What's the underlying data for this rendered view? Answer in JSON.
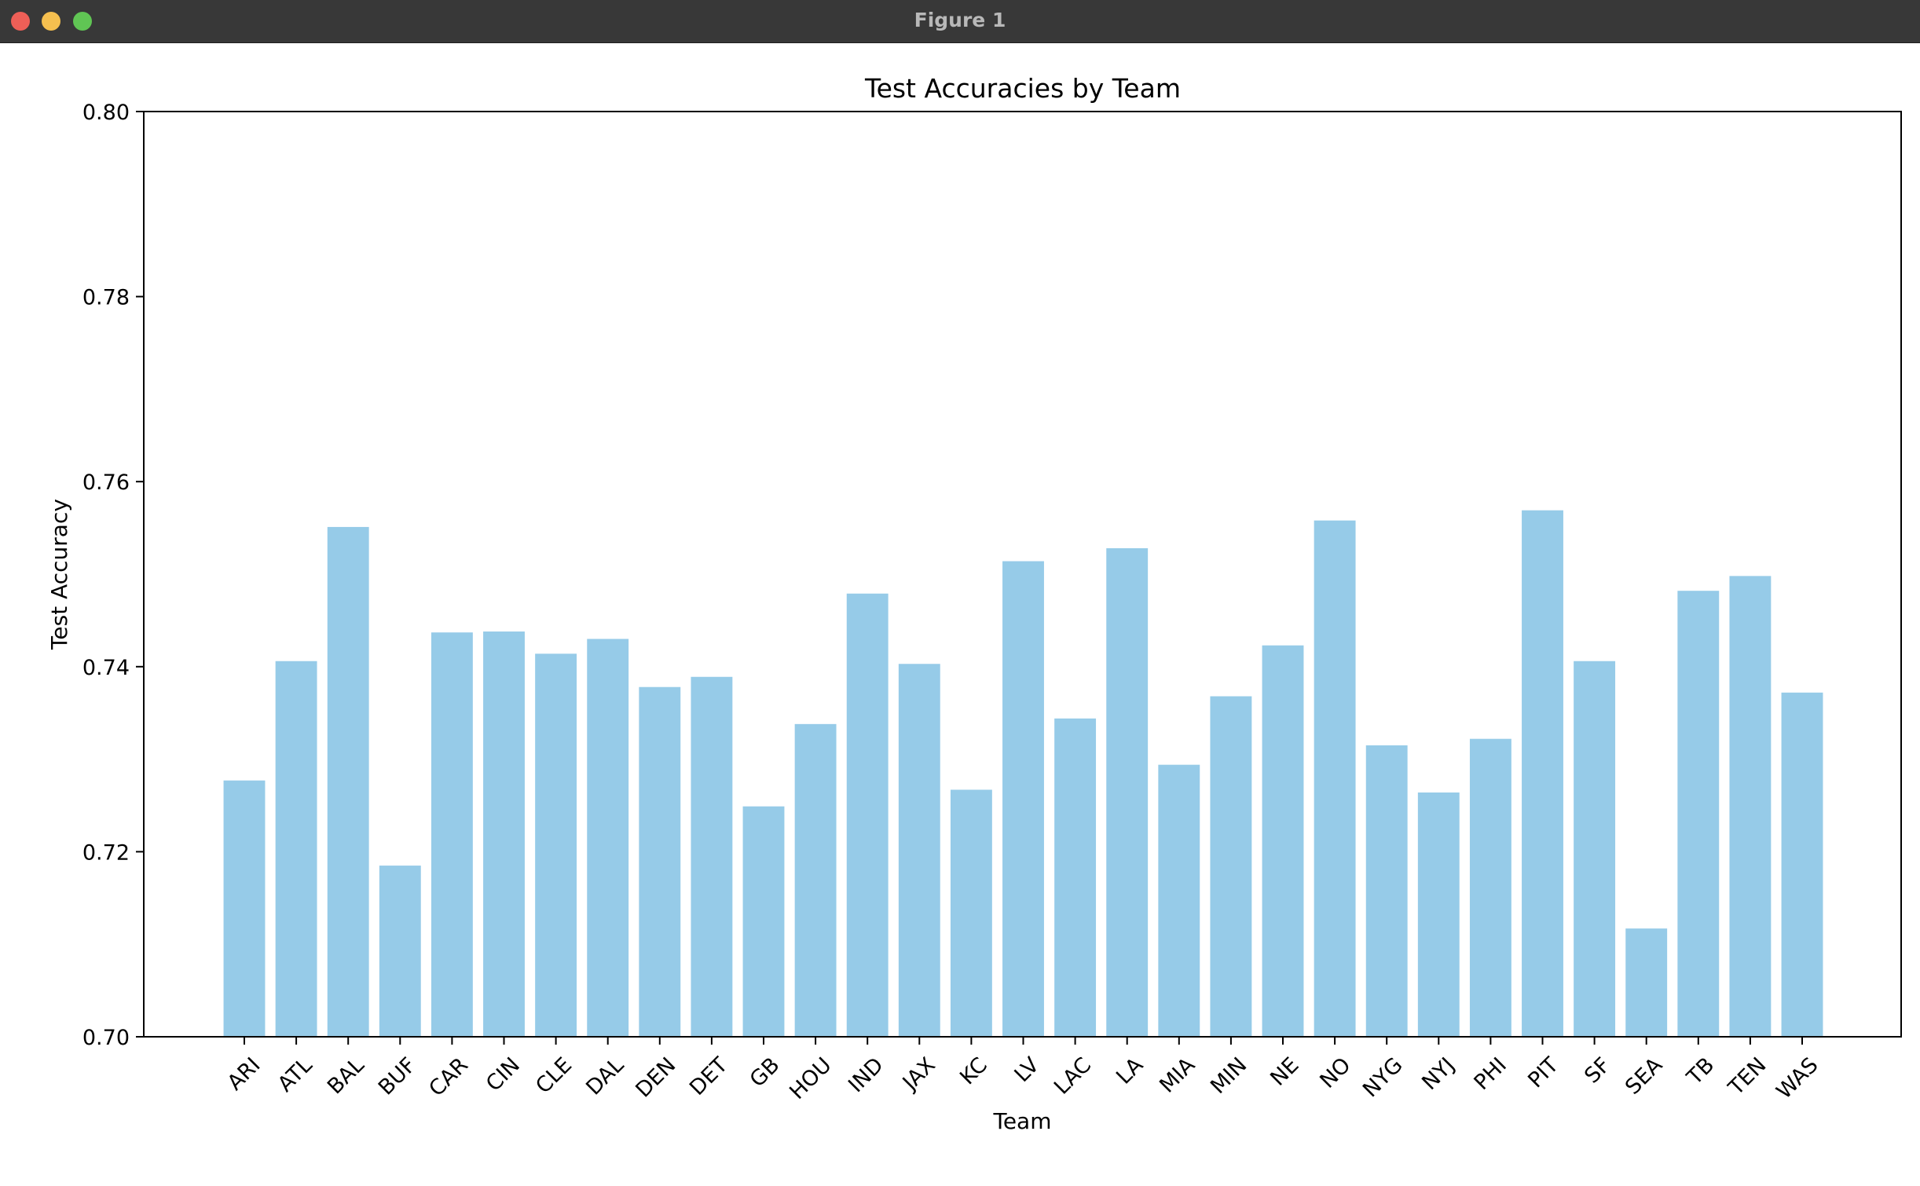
{
  "window": {
    "title": "Figure 1",
    "colors": {
      "close": "#ee5f57",
      "minimize": "#f5bf4f",
      "maximize": "#60c554"
    }
  },
  "chart_data": {
    "type": "bar",
    "title": "Test Accuracies by Team",
    "xlabel": "Team",
    "ylabel": "Test Accuracy",
    "ylim": [
      0.7,
      0.8
    ],
    "yticks": [
      "0.70",
      "0.72",
      "0.74",
      "0.76",
      "0.78",
      "0.80"
    ],
    "ytick_values": [
      0.7,
      0.72,
      0.74,
      0.76,
      0.78,
      0.8
    ],
    "bar_color": "#96cbe8",
    "grid": false,
    "categories": [
      "ARI",
      "ATL",
      "BAL",
      "BUF",
      "CAR",
      "CIN",
      "CLE",
      "DAL",
      "DEN",
      "DET",
      "GB",
      "HOU",
      "IND",
      "JAX",
      "KC",
      "LV",
      "LAC",
      "LA",
      "MIA",
      "MIN",
      "NE",
      "NO",
      "NYG",
      "NYJ",
      "PHI",
      "PIT",
      "SF",
      "SEA",
      "TB",
      "TEN",
      "WAS"
    ],
    "values": [
      0.7277,
      0.7406,
      0.7551,
      0.7185,
      0.7437,
      0.7438,
      0.7414,
      0.743,
      0.7378,
      0.7389,
      0.7249,
      0.7338,
      0.7479,
      0.7403,
      0.7267,
      0.7514,
      0.7344,
      0.7528,
      0.7294,
      0.7368,
      0.7423,
      0.7558,
      0.7315,
      0.7264,
      0.7322,
      0.7569,
      0.7406,
      0.7117,
      0.7482,
      0.7498,
      0.7372
    ]
  }
}
